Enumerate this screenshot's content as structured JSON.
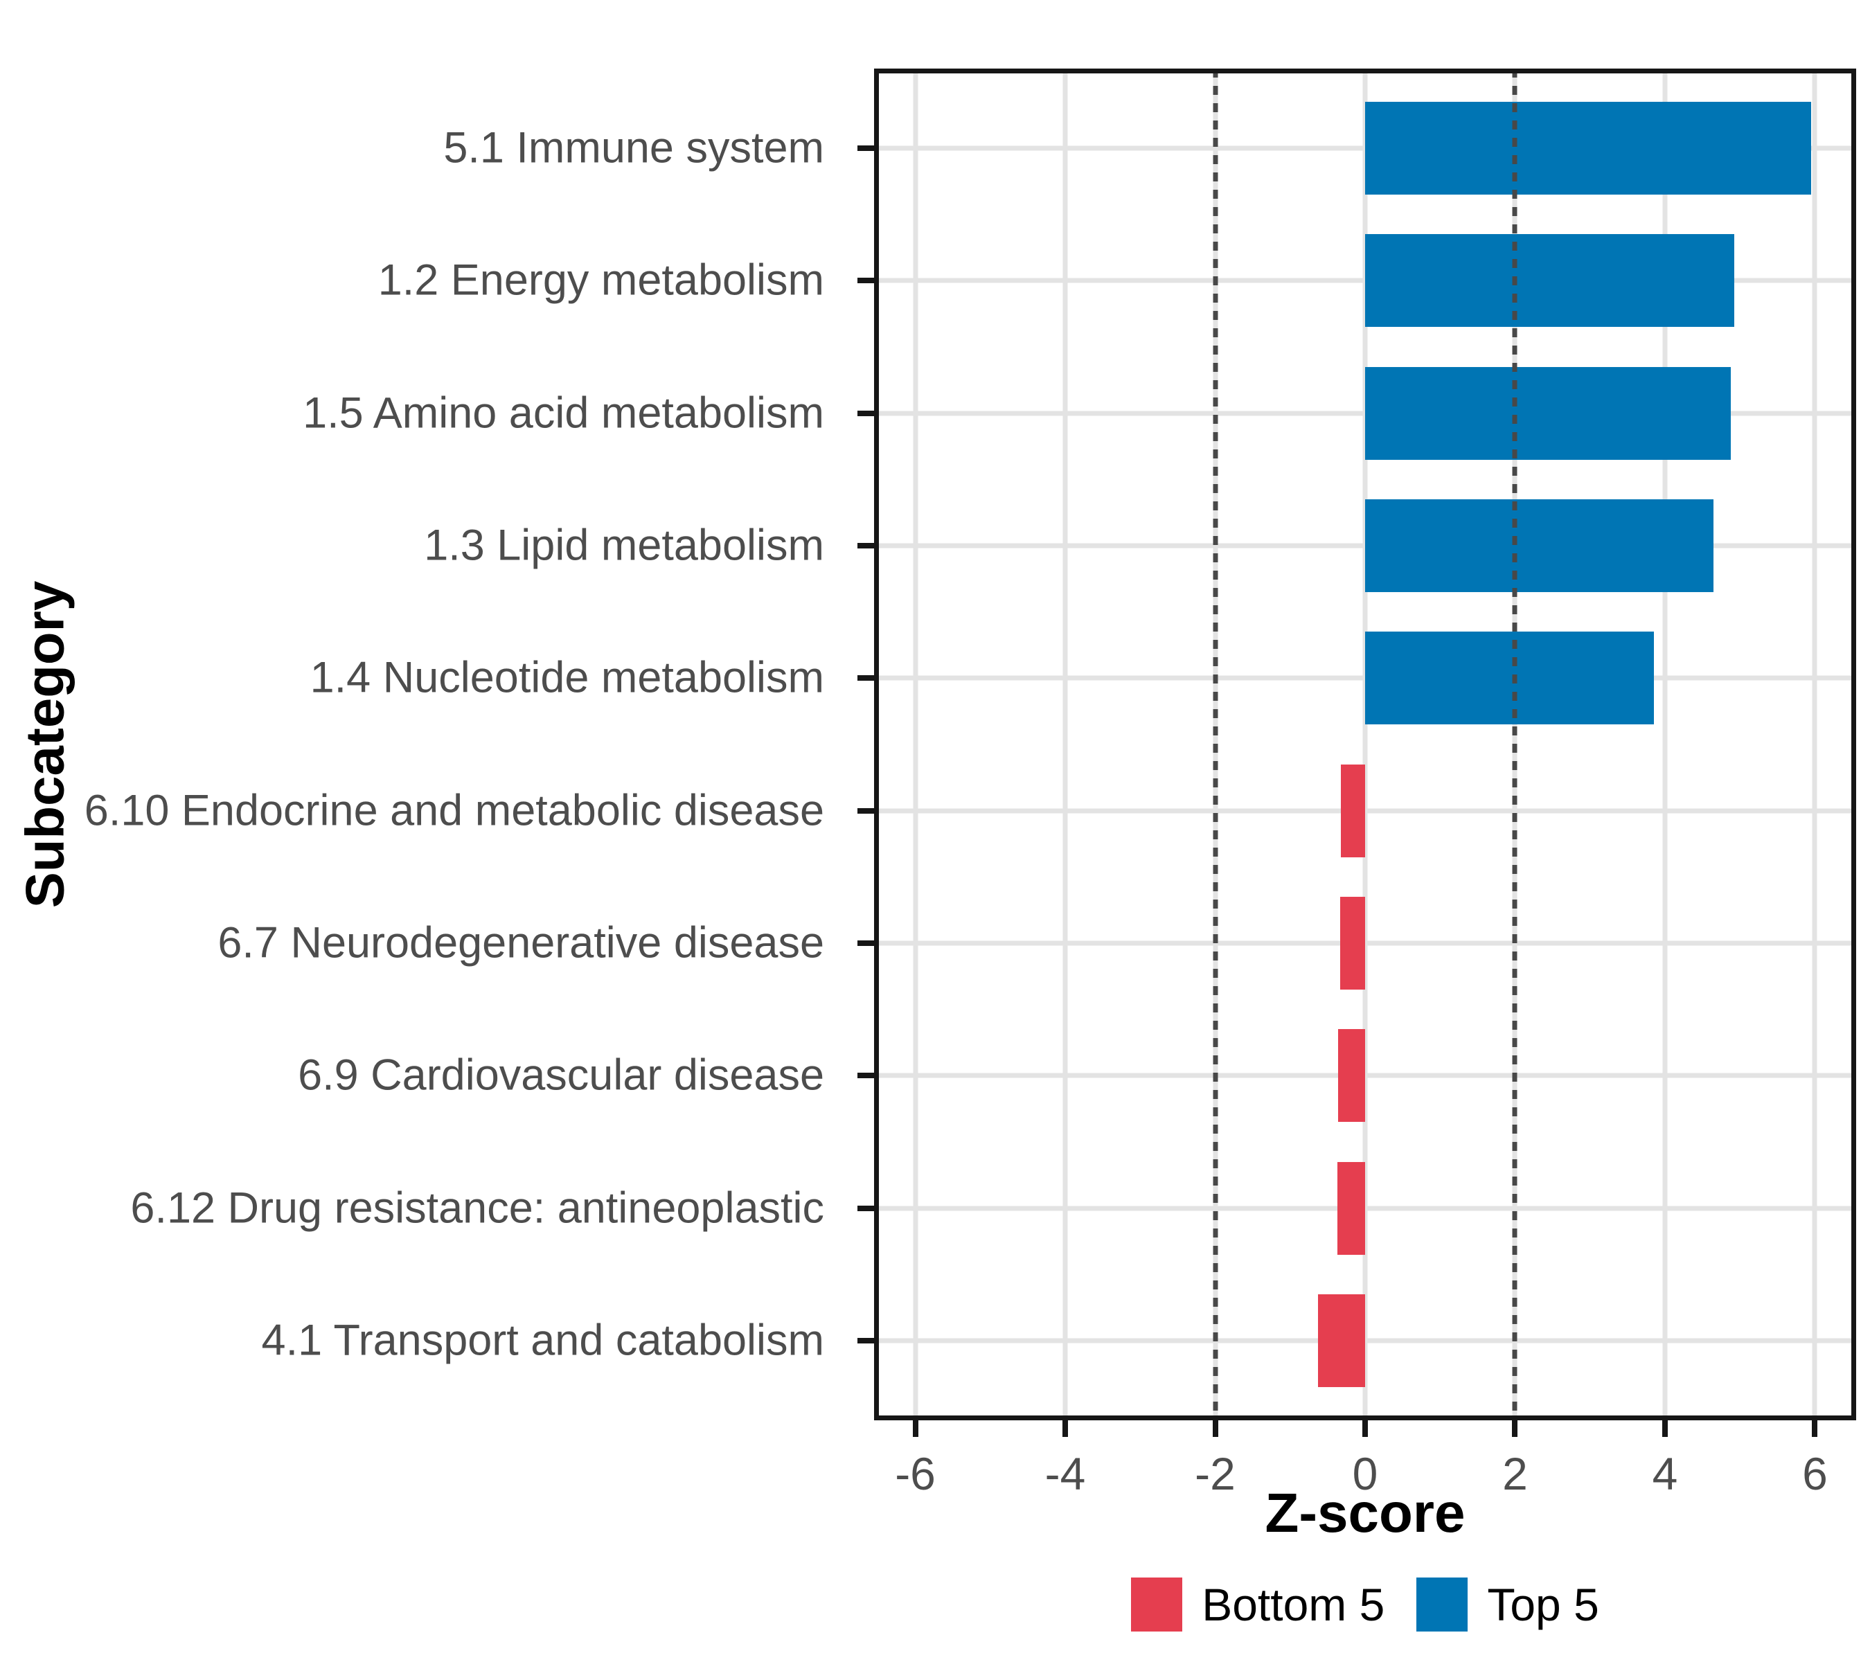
{
  "chart_data": {
    "type": "bar",
    "orientation": "horizontal",
    "title": "",
    "xlabel": "Z-score",
    "ylabel": "Subcategory",
    "categories": [
      "5.1 Immune system",
      "1.2 Energy metabolism",
      "1.5 Amino acid metabolism",
      "1.3 Lipid metabolism",
      "1.4 Nucleotide metabolism",
      "6.10 Endocrine and metabolic disease",
      "6.7 Neurodegenerative disease",
      "6.9 Cardiovascular disease",
      "6.12 Drug resistance: antineoplastic",
      "4.1 Transport and catabolism"
    ],
    "values": [
      5.95,
      4.92,
      4.88,
      4.65,
      3.85,
      -0.32,
      -0.33,
      -0.36,
      -0.37,
      -0.63
    ],
    "groups": [
      "Top 5",
      "Top 5",
      "Top 5",
      "Top 5",
      "Top 5",
      "Bottom 5",
      "Bottom 5",
      "Bottom 5",
      "Bottom 5",
      "Bottom 5"
    ],
    "colors": {
      "Top 5": "#0075B4",
      "Bottom 5": "#E53E4F"
    },
    "xlim": [
      -6.55,
      6.55
    ],
    "x_ticks": [
      -6,
      -4,
      -2,
      0,
      2,
      4,
      6
    ],
    "reference_lines": [
      -2,
      2
    ],
    "grid": true,
    "bar_width": 0.7,
    "row_expand": 0.6,
    "legend_position": "bottom",
    "legend": [
      {
        "label": "Bottom 5",
        "color": "#E53E4F"
      },
      {
        "label": "Top 5",
        "color": "#0075B4"
      }
    ],
    "style_colors": {
      "gridline": "#e3e3e3",
      "reference_line": "#484848",
      "panel_border": "#161616",
      "tick_label": "#4d4d4d",
      "axis_title": "#000000"
    }
  }
}
